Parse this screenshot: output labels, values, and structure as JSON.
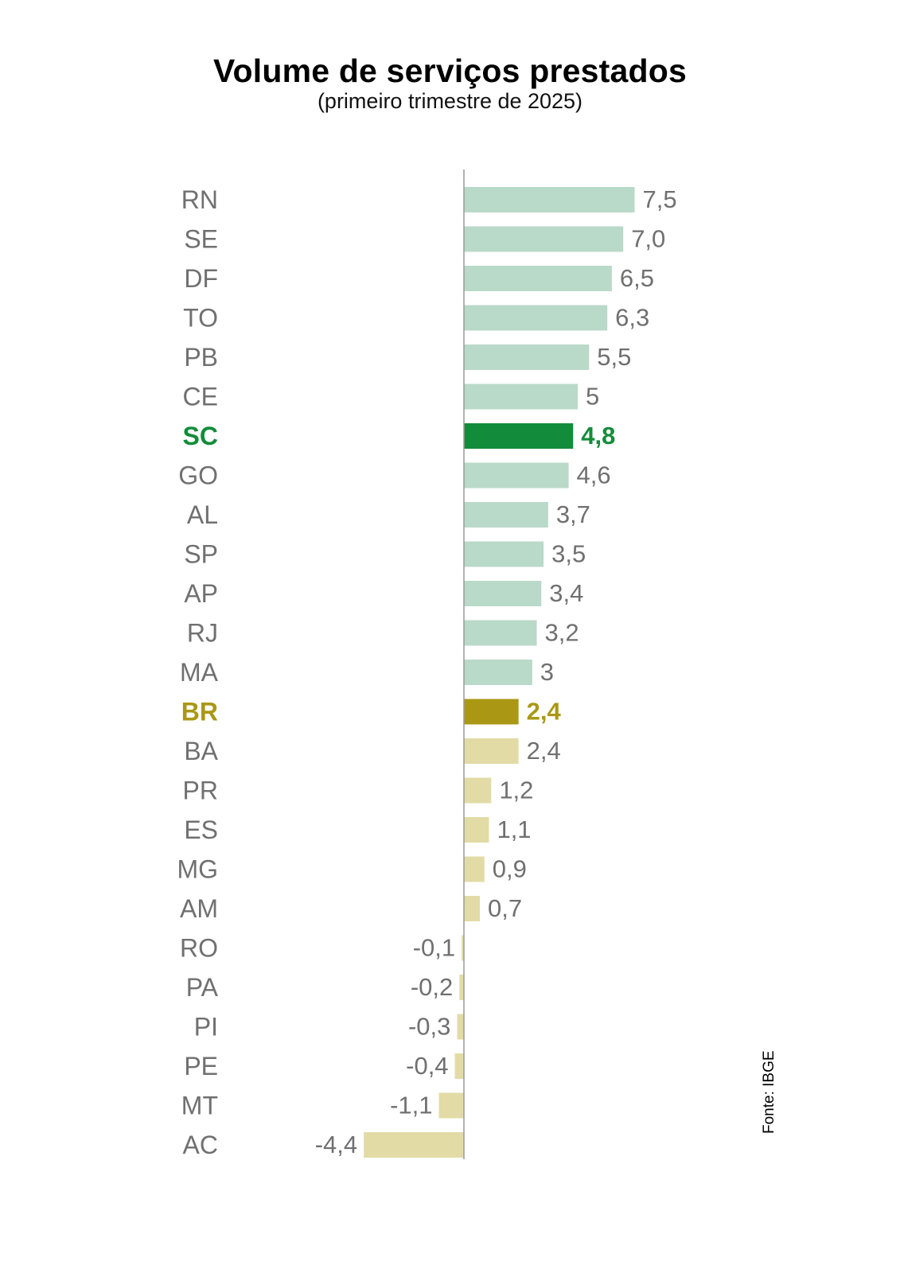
{
  "page": {
    "title": "Volume de serviços prestados",
    "subtitle": "(primeiro trimestre de 2025)",
    "source": "Fonte: IBGE"
  },
  "colors": {
    "positive": "#b9d9c9",
    "negative": "#e2dba6",
    "highlight_sc": "#128c3a",
    "highlight_br": "#aa9815",
    "label_gray": "#707070",
    "axis": "#9a9a9a"
  },
  "chart_data": {
    "type": "bar",
    "orientation": "horizontal",
    "title": "Volume de serviços prestados",
    "subtitle": "(primeiro trimestre de 2025)",
    "categories": [
      "RN",
      "SE",
      "DF",
      "TO",
      "PB",
      "CE",
      "SC",
      "GO",
      "AL",
      "SP",
      "AP",
      "RJ",
      "MA",
      "BR",
      "BA",
      "PR",
      "ES",
      "MG",
      "AM",
      "RO",
      "PA",
      "PI",
      "PE",
      "MT",
      "AC"
    ],
    "values": [
      7.5,
      7.0,
      6.5,
      6.3,
      5.5,
      5,
      4.8,
      4.6,
      3.7,
      3.5,
      3.4,
      3.2,
      3,
      2.4,
      2.4,
      1.2,
      1.1,
      0.9,
      0.7,
      -0.1,
      -0.2,
      -0.3,
      -0.4,
      -1.1,
      -4.4
    ],
    "value_labels": [
      "7,5",
      "7,0",
      "6,5",
      "6,3",
      "5,5",
      "5",
      "4,8",
      "4,6",
      "3,7",
      "3,5",
      "3,4",
      "3,2",
      "3",
      "2,4",
      "2,4",
      "1,2",
      "1,1",
      "0,9",
      "0,7",
      "-0,1",
      "-0,2",
      "-0,3",
      "-0,4",
      "-1,1",
      "-4,4"
    ],
    "highlights": {
      "SC": "highlight_sc",
      "BR": "highlight_br"
    },
    "grid": false,
    "legend": "none"
  }
}
